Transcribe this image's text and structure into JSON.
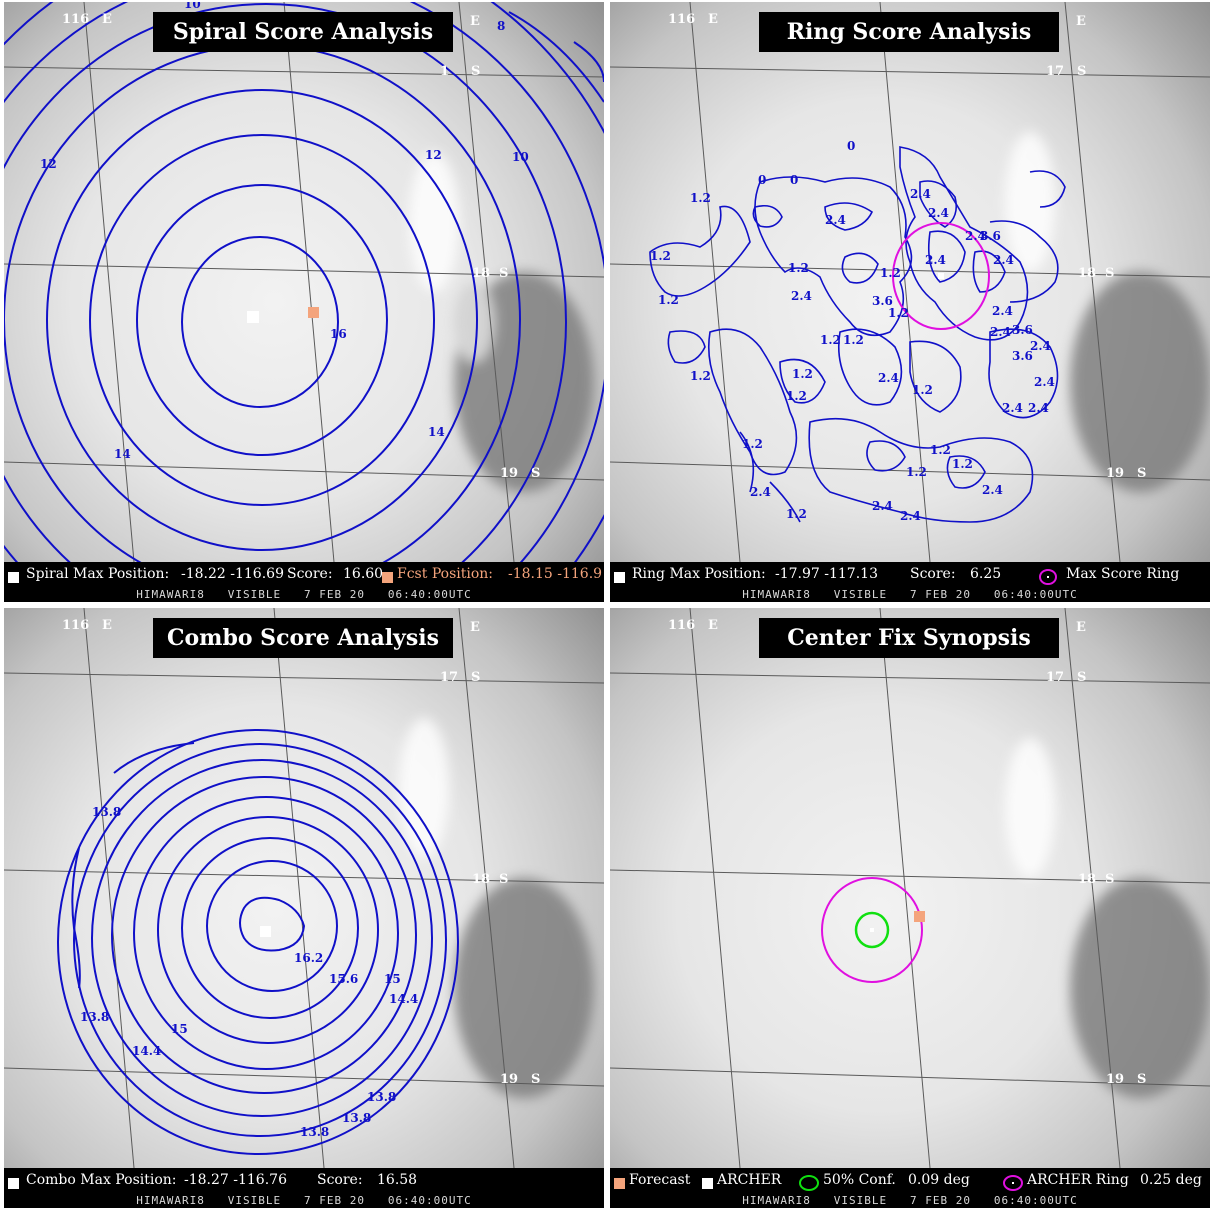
{
  "panels": [
    {
      "id": "spiral",
      "title": "Spiral Score Analysis",
      "grid_labels": [
        "116",
        "E",
        "E",
        "1",
        "S",
        "18",
        "S",
        "19",
        "S"
      ],
      "contour_labels": [
        "10",
        "8",
        "12",
        "12",
        "10",
        "16",
        "14",
        "14"
      ],
      "legend": {
        "marker_label": "Spiral Max Position:",
        "position_value": "-18.22 -116.69",
        "score_label": "Score:",
        "score_value": "16.60",
        "fcst_label": "Fcst Position:",
        "fcst_value": "-18.15 -116.9"
      },
      "footer": "HIMAWARI8   VISIBLE   7 FEB 20   06:40:00UTC"
    },
    {
      "id": "ring",
      "title": "Ring Score Analysis",
      "grid_labels": [
        "116",
        "E",
        "E",
        "17",
        "S",
        "18",
        "S",
        "19",
        "S"
      ],
      "contour_labels": [
        "0",
        "0",
        "0",
        "1.2",
        "1.2",
        "1.2",
        "1.2",
        "2.4",
        "2.4",
        "2.4",
        "2.4",
        "2.4",
        "3.6",
        "3.6",
        "2.4",
        "2.4",
        "1.2",
        "1.2",
        "1.2",
        "1.2",
        "1.2",
        "2.4",
        "2.4",
        "1.2",
        "2.4",
        "1.2",
        "1.2",
        "2.4",
        "2.4",
        "1.2",
        "1.2",
        "2.4",
        "3.6",
        "2.4",
        "2.4",
        "1.2",
        "3.6",
        "2.4",
        "2.4",
        "2.4",
        "1.2",
        "1.2"
      ],
      "legend": {
        "marker_label": "Ring Max Position:",
        "position_value": "-17.97 -117.13",
        "score_label": "Score:",
        "score_value": "6.25",
        "ring_label": "Max Score Ring"
      },
      "footer": "HIMAWARI8   VISIBLE   7 FEB 20   06:40:00UTC"
    },
    {
      "id": "combo",
      "title": "Combo Score Analysis",
      "grid_labels": [
        "116",
        "E",
        "E",
        "17",
        "S",
        "18",
        "S",
        "19",
        "S"
      ],
      "contour_labels": [
        "13.8",
        "16.2",
        "15.6",
        "15",
        "14.4",
        "13.8",
        "15",
        "14.4",
        "13.8",
        "13.8",
        "13.8"
      ],
      "legend": {
        "marker_label": "Combo Max Position:",
        "position_value": "-18.27 -116.76",
        "score_label": "Score:",
        "score_value": "16.58"
      },
      "footer": "HIMAWARI8   VISIBLE   7 FEB 20   06:40:00UTC"
    },
    {
      "id": "synopsis",
      "title": "Center Fix Synopsis",
      "grid_labels": [
        "116",
        "E",
        "E",
        "17",
        "S",
        "18",
        "S",
        "19",
        "S"
      ],
      "legend": {
        "forecast_label": "Forecast",
        "archer_label": "ARCHER",
        "conf_label": "50% Conf.",
        "conf_value": "0.09 deg",
        "ring_label": "ARCHER Ring",
        "ring_value": "0.25 deg"
      },
      "footer": "HIMAWARI8   VISIBLE   7 FEB 20   06:40:00UTC"
    }
  ],
  "colors": {
    "contour": "#1010c8",
    "forecast_marker": "#f4a47c",
    "archer_marker": "#ffffff",
    "ring": "#e010e0",
    "confidence": "#10e010"
  }
}
